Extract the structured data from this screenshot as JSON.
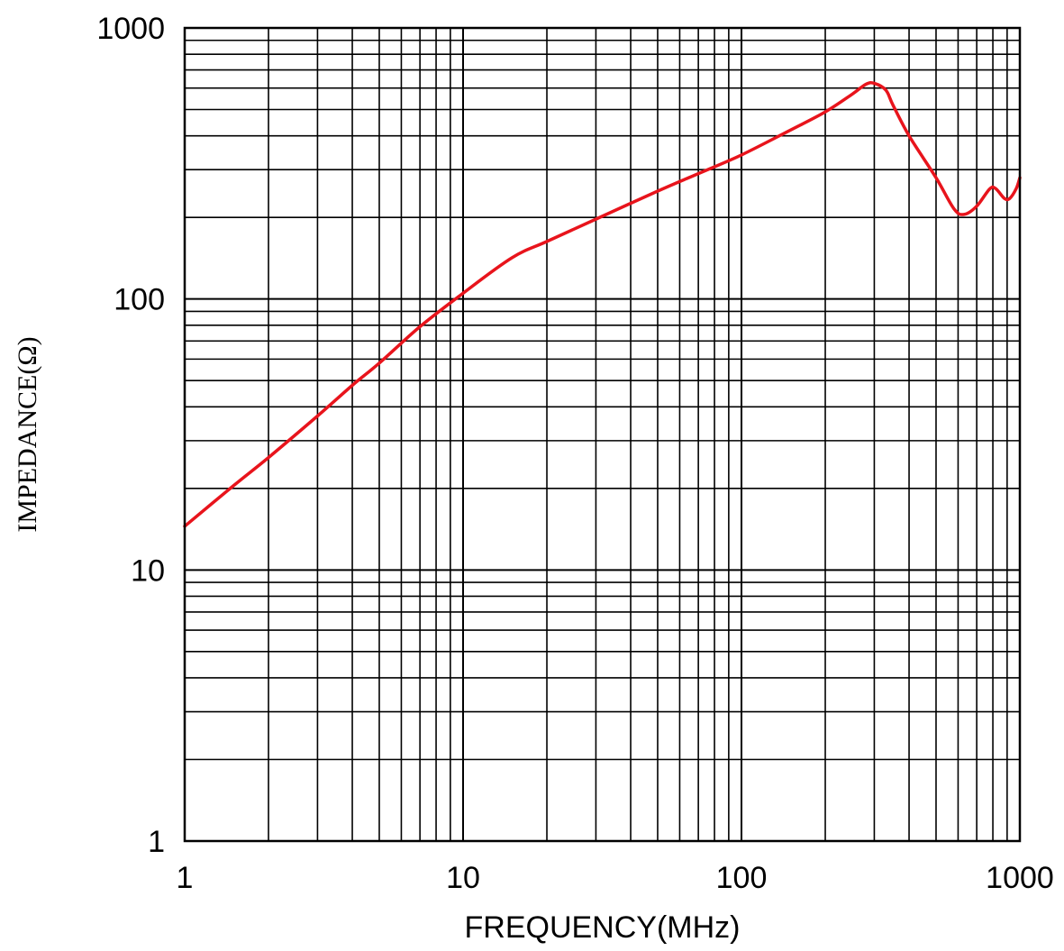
{
  "chart_data": {
    "type": "line",
    "title": "",
    "xlabel": "FREQUENCY(MHz)",
    "ylabel": "IMPEDANCE(Ω)",
    "x_scale": "log",
    "y_scale": "log",
    "xlim": [
      1,
      1000
    ],
    "ylim": [
      1,
      1000
    ],
    "x_ticks": [
      1,
      10,
      100,
      1000
    ],
    "x_tick_labels": [
      "1",
      "10",
      "100",
      "1000"
    ],
    "y_ticks": [
      1,
      10,
      100,
      1000
    ],
    "y_tick_labels": [
      "1",
      "10",
      "100",
      "1000"
    ],
    "grid": true,
    "legend": "none",
    "series": [
      {
        "color": "#e8141c",
        "x": [
          1,
          1.5,
          2,
          3,
          4,
          5,
          7,
          10,
          15,
          20,
          30,
          50,
          70,
          100,
          150,
          200,
          250,
          280,
          300,
          330,
          350,
          400,
          500,
          580,
          630,
          700,
          780,
          820,
          880,
          920,
          970,
          1000
        ],
        "y": [
          14.5,
          20.5,
          26,
          37,
          48,
          58,
          79,
          105,
          142,
          163,
          197,
          250,
          290,
          340,
          420,
          490,
          570,
          620,
          625,
          590,
          520,
          400,
          280,
          215,
          205,
          220,
          255,
          255,
          235,
          235,
          255,
          280
        ]
      }
    ]
  }
}
